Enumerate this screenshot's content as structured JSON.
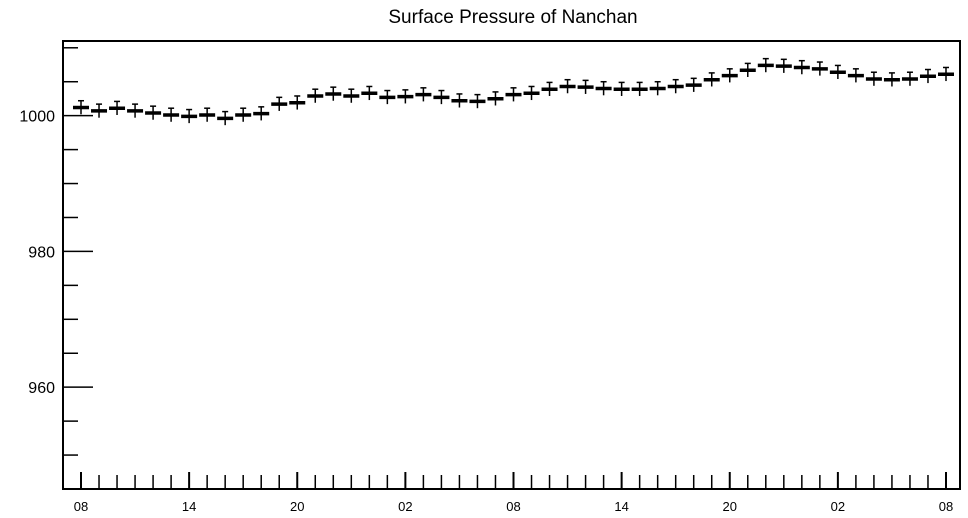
{
  "chart_data": {
    "type": "scatter",
    "title": "Surface Pressure of Nanchan",
    "xlabel": "",
    "ylabel": "",
    "ylim": [
      945,
      1011
    ],
    "y_ticks": [
      960,
      980,
      1000
    ],
    "x_tick_labels": [
      "08",
      "14",
      "20",
      "02",
      "08",
      "14",
      "20",
      "02",
      "08"
    ],
    "grid": false,
    "legend": "none",
    "error_bar_half_width": 1,
    "series": [
      {
        "values": [
          1001.2,
          1000.7,
          1001.1,
          1000.7,
          1000.4,
          1000.1,
          999.9,
          1000.1,
          999.6,
          1000.1,
          1000.3,
          1001.7,
          1001.9,
          1002.9,
          1003.2,
          1002.9,
          1003.3,
          1002.7,
          1002.8,
          1003.1,
          1002.7,
          1002.2,
          1002.1,
          1002.5,
          1003.1,
          1003.3,
          1003.9,
          1004.3,
          1004.2,
          1004.0,
          1003.9,
          1003.9,
          1004.0,
          1004.3,
          1004.5,
          1005.3,
          1005.9,
          1006.7,
          1007.4,
          1007.3,
          1007.1,
          1006.9,
          1006.4,
          1005.9,
          1005.4,
          1005.3,
          1005.4,
          1005.8,
          1006.1
        ]
      }
    ]
  },
  "colors": {
    "axis": "#000000",
    "markers": "#000000",
    "background": "#ffffff"
  }
}
